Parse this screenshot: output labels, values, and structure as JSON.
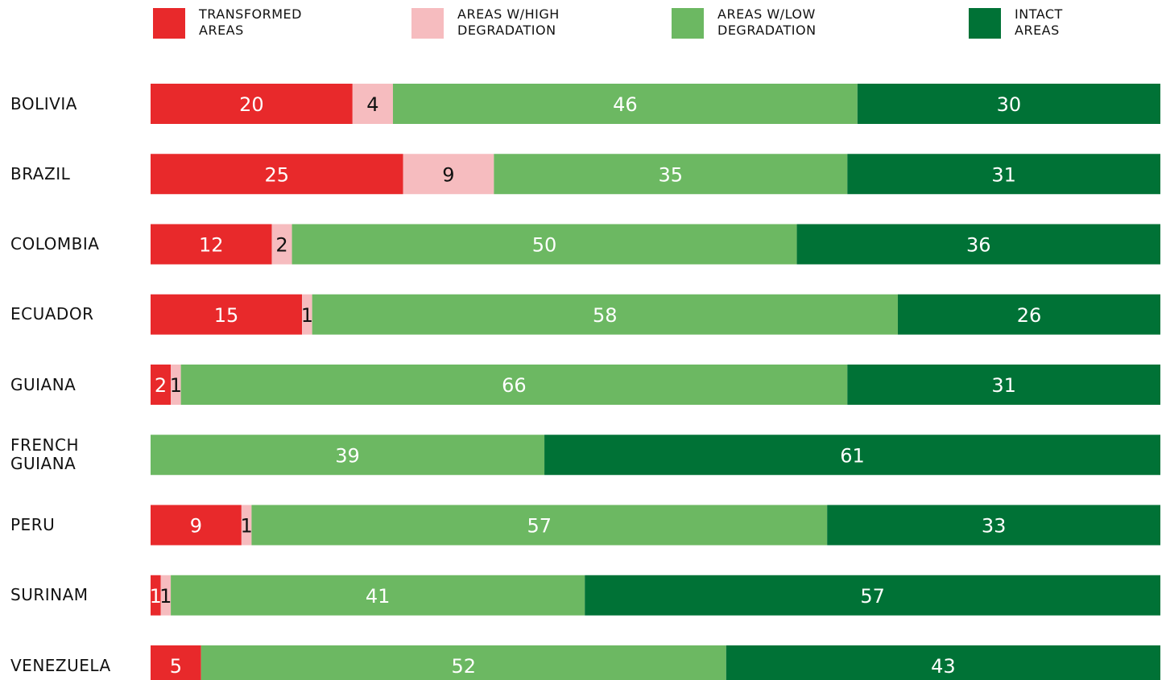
{
  "chart_data": {
    "type": "stacked-bar-horizontal",
    "categories": [
      "BOLIVIA",
      "BRAZIL",
      "COLOMBIA",
      "ECUADOR",
      "GUIANA",
      "FRENCH GUIANA",
      "PERU",
      "SURINAM",
      "VENEZUELA"
    ],
    "xlim": [
      0,
      100
    ],
    "series": [
      {
        "name": "TRANSFORMED AREAS",
        "color": "#e8292b",
        "text_color": "#ffffff",
        "values": [
          20,
          25,
          12,
          15,
          2,
          0,
          9,
          1,
          5
        ]
      },
      {
        "name": "AREAS W/HIGH DEGRADATION",
        "color": "#f6bcbf",
        "text_color": "#111111",
        "values": [
          4,
          9,
          2,
          1,
          1,
          0,
          1,
          1,
          0
        ]
      },
      {
        "name": "AREAS W/LOW DEGRADATION",
        "color": "#6cb862",
        "text_color": "#ffffff",
        "values": [
          46,
          35,
          50,
          58,
          66,
          39,
          57,
          41,
          52
        ]
      },
      {
        "name": "INTACT AREAS",
        "color": "#007236",
        "text_color": "#ffffff",
        "values": [
          30,
          31,
          36,
          26,
          31,
          61,
          33,
          57,
          43
        ]
      }
    ]
  }
}
